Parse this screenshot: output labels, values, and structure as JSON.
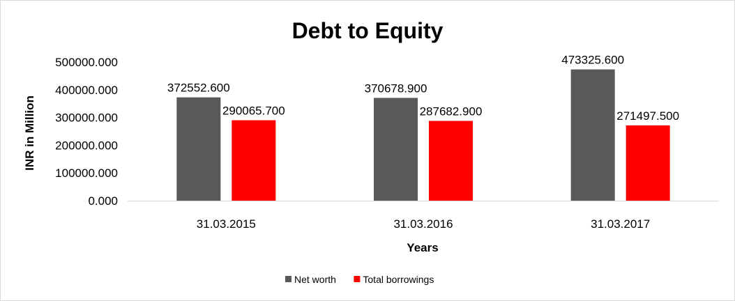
{
  "chart_data": {
    "type": "bar",
    "title": "Debt to Equity",
    "xlabel": "Years",
    "ylabel": "INR in Million",
    "categories": [
      "31.03.2015",
      "31.03.2016",
      "31.03.2017"
    ],
    "series": [
      {
        "name": "Net worth",
        "values": [
          372552.6,
          370678.9,
          473325.6
        ],
        "labels": [
          "372552.600",
          "370678.900",
          "473325.600"
        ],
        "color": "#595959"
      },
      {
        "name": "Total borrowings",
        "values": [
          290065.7,
          287682.9,
          271497.5
        ],
        "labels": [
          "290065.700",
          "287682.900",
          "271497.500"
        ],
        "color": "#ff0000"
      }
    ],
    "ylim": [
      0,
      500000
    ],
    "yticks": [
      "0.000",
      "100000.000",
      "200000.000",
      "300000.000",
      "400000.000",
      "500000.000"
    ],
    "grid": false,
    "legend_position": "bottom"
  }
}
